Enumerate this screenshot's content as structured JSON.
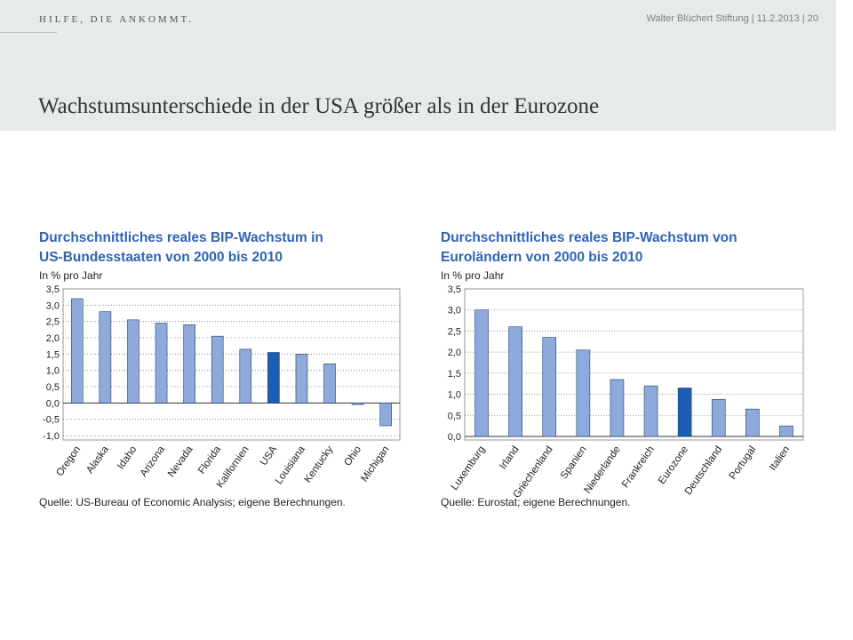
{
  "header": {
    "brand": "HILFE, DIE ANKOMMT.",
    "meta": "Walter Blüchert Stiftung | 11.2.2013 | 20",
    "title": "Wachstumsunterschiede in der USA größer als in der Eurozone"
  },
  "colors": {
    "bar": "#8eaadb",
    "highlight": "#1d5eb5",
    "title": "#2f63b5"
  },
  "chart_data": [
    {
      "type": "bar",
      "title_line1": "Durchschnittliches reales BIP-Wachstum in",
      "title_line2": "US-Bundesstaaten von 2000 bis 2010",
      "unit_label": "In % pro Jahr",
      "source": "Quelle: US-Bureau of Economic Analysis; eigene Berechnungen.",
      "categories": [
        "Oregon",
        "Alaska",
        "Idaho",
        "Arizona",
        "Nevada",
        "Florida",
        "Kalifornien",
        "USA",
        "Louisiana",
        "Kentucky",
        "Ohio",
        "Michigan"
      ],
      "values": [
        3.2,
        2.8,
        2.55,
        2.45,
        2.4,
        2.05,
        1.65,
        1.55,
        1.5,
        1.2,
        -0.05,
        -0.7
      ],
      "highlight": "USA",
      "ylim": [
        -1.0,
        3.5
      ],
      "yticks": [
        "3,5",
        "3,0",
        "2,5",
        "2,0",
        "1,5",
        "1,0",
        "0,5",
        "0,0",
        "-0,5",
        "-1,0"
      ],
      "grid": true
    },
    {
      "type": "bar",
      "title_line1": "Durchschnittliches reales BIP-Wachstum von",
      "title_line2": "Euroländern von 2000 bis 2010",
      "unit_label": "In % pro Jahr",
      "source": "Quelle: Eurostat; eigene Berechnungen.",
      "categories": [
        "Luxemburg",
        "Irland",
        "Griechenland",
        "Spanien",
        "Niederlande",
        "Frankreich",
        "Eurozone",
        "Deutschland",
        "Portugal",
        "Italien"
      ],
      "values": [
        3.0,
        2.6,
        2.35,
        2.05,
        1.35,
        1.2,
        1.15,
        0.88,
        0.65,
        0.25
      ],
      "highlight": "Eurozone",
      "ylim": [
        0.0,
        3.5
      ],
      "yticks": [
        "3,5",
        "3,0",
        "2,5",
        "2,0",
        "1,5",
        "1,0",
        "0,5",
        "0,0"
      ],
      "grid": true
    }
  ]
}
